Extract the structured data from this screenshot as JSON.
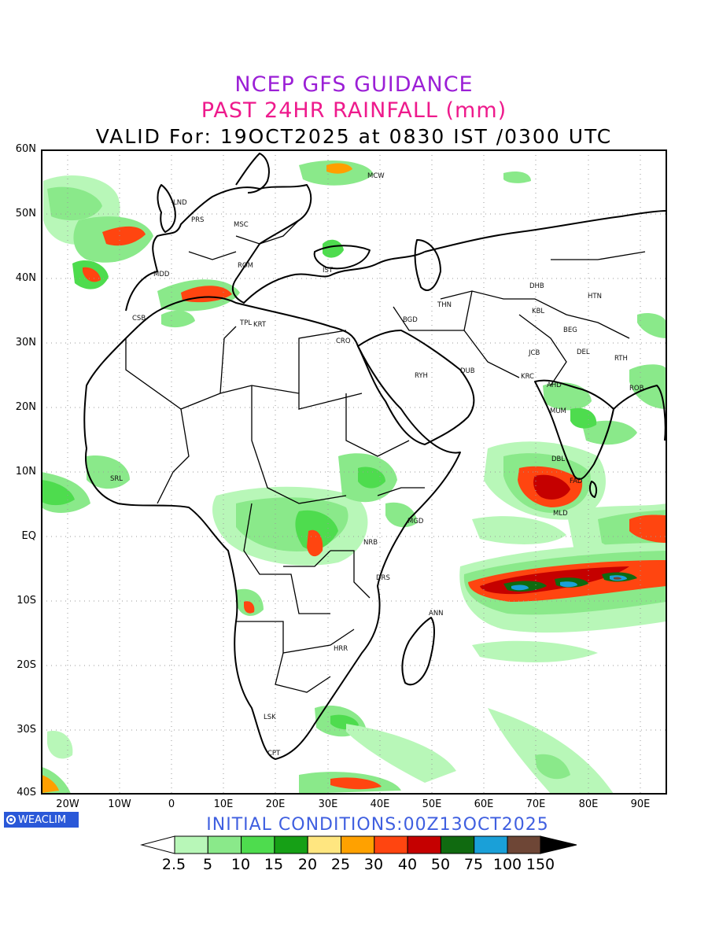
{
  "titles": {
    "line1": "NCEP GFS GUIDANCE",
    "line2": "PAST 24HR RAINFALL (mm)",
    "line3": "VALID For: 19OCT2025 at 0830 IST /0300 UTC"
  },
  "colors": {
    "title1": "#9b1fd6",
    "title2": "#ee1a8c",
    "init": "#3f5fe0",
    "logo_bg": "#2a58d8"
  },
  "lat_labels": [
    "60N",
    "50N",
    "40N",
    "30N",
    "20N",
    "10N",
    "EQ",
    "10S",
    "20S",
    "30S",
    "40S"
  ],
  "lon_labels": [
    "20W",
    "10W",
    "0",
    "10E",
    "20E",
    "30E",
    "40E",
    "50E",
    "60E",
    "70E",
    "80E",
    "90E"
  ],
  "cities": [
    "LND",
    "PRS",
    "MSC",
    "MCW",
    "MDD",
    "ROM",
    "IST",
    "CSB",
    "TPL",
    "KRT",
    "CRO",
    "BGD",
    "THN",
    "DHB",
    "HTN",
    "KBL",
    "RYH",
    "DUB",
    "JCB",
    "KRC",
    "AHD",
    "MUM",
    "DEL",
    "RTH",
    "ROB",
    "BEG",
    "FAD",
    "DBL",
    "MLD",
    "MGD",
    "NRB",
    "DRS",
    "ANN",
    "HRR",
    "LSK",
    "CPT",
    "SRL"
  ],
  "logo_text": "WEACLIM",
  "init_text": "INITIAL CONDITIONS:00Z13OCT2025",
  "colorbar": {
    "labels": [
      "2.5",
      "5",
      "10",
      "15",
      "20",
      "25",
      "30",
      "40",
      "50",
      "75",
      "100",
      "150"
    ],
    "colors": [
      "#b8f7b8",
      "#8ae98a",
      "#4edc4e",
      "#16a016",
      "#ffe680",
      "#ffa100",
      "#ff4510",
      "#c50000",
      "#106a10",
      "#1aa0d8",
      "#6e4636"
    ]
  }
}
